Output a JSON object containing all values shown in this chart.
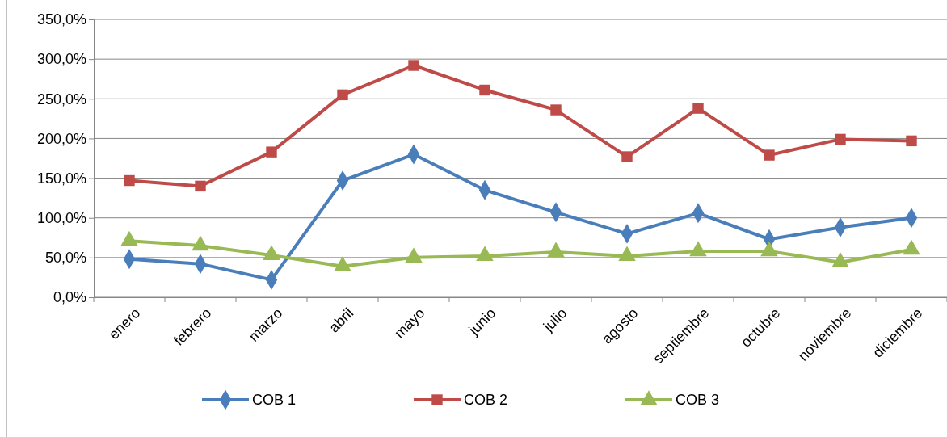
{
  "chart_data": {
    "type": "line",
    "categories": [
      "enero",
      "febrero",
      "marzo",
      "abril",
      "mayo",
      "junio",
      "julio",
      "agosto",
      "septiembre",
      "octubre",
      "noviembre",
      "diciembre"
    ],
    "series": [
      {
        "name": "COB 1",
        "color": "#4a7ebb",
        "marker": "diamond",
        "values": [
          48,
          42,
          22,
          147,
          180,
          135,
          107,
          80,
          106,
          73,
          88,
          100
        ]
      },
      {
        "name": "COB 2",
        "color": "#be4b48",
        "marker": "square",
        "values": [
          147,
          140,
          183,
          255,
          292,
          261,
          236,
          177,
          238,
          179,
          199,
          197
        ]
      },
      {
        "name": "COB 3",
        "color": "#98b954",
        "marker": "triangle",
        "values": [
          71,
          65,
          53,
          39,
          50,
          52,
          57,
          52,
          58,
          58,
          44,
          60
        ]
      }
    ],
    "ylim": [
      0,
      350
    ],
    "yticks": [
      {
        "value": 0,
        "label": "0,0%"
      },
      {
        "value": 50,
        "label": "50,0%"
      },
      {
        "value": 100,
        "label": "100,0%"
      },
      {
        "value": 150,
        "label": "150,0%"
      },
      {
        "value": 200,
        "label": "200,0%"
      },
      {
        "value": 250,
        "label": "250,0%"
      },
      {
        "value": 300,
        "label": "300,0%"
      },
      {
        "value": 350,
        "label": "350,0%"
      }
    ],
    "grid": "y",
    "legend": "bottom",
    "line_style": "solid"
  }
}
